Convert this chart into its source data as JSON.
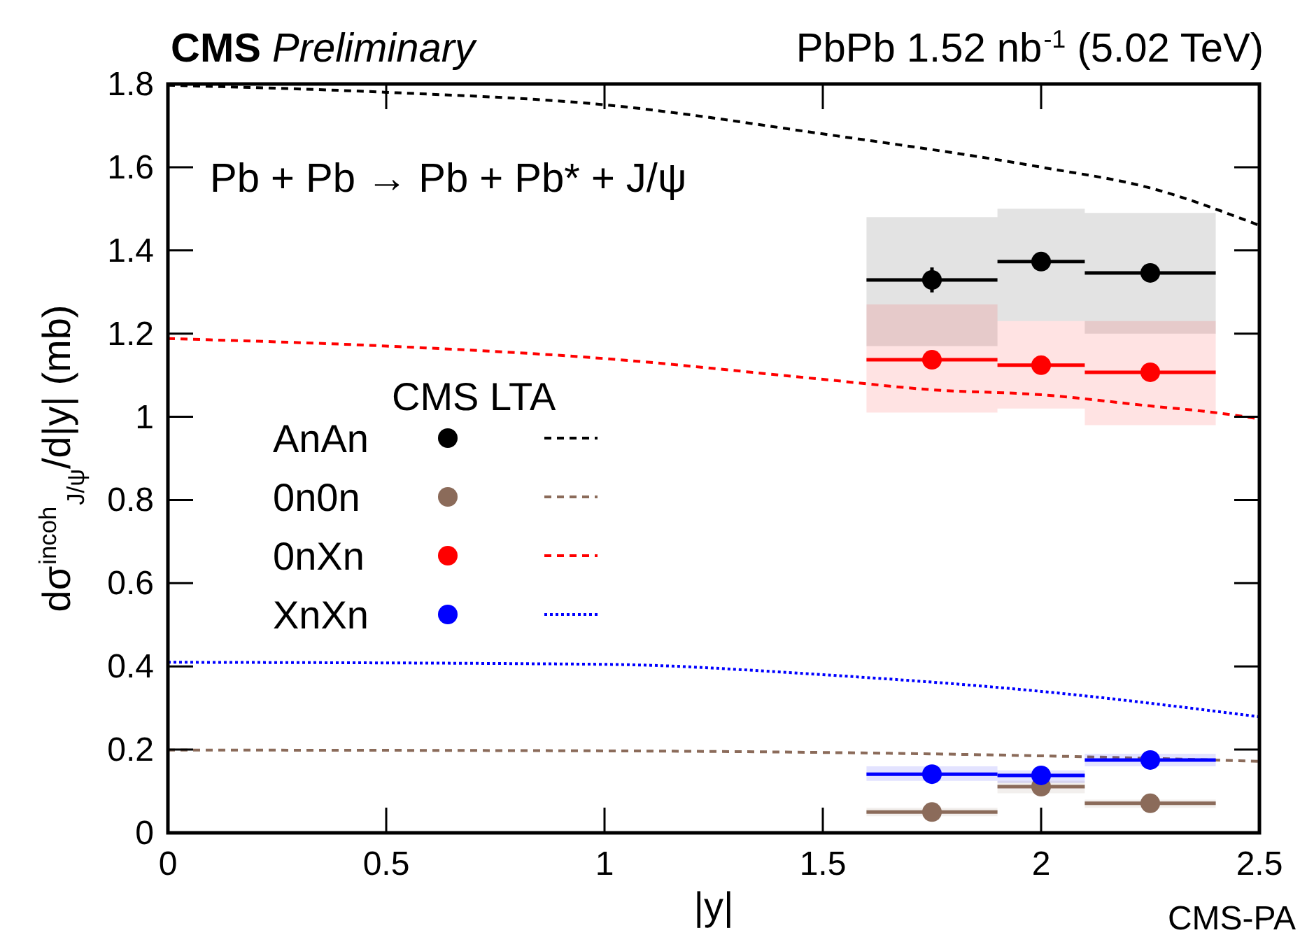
{
  "chart_data": {
    "type": "scatter",
    "title": "CMS Preliminary",
    "subtitle": "PbPb 1.52 nb$^{-1}$ (5.02 TeV)",
    "xlabel": "|y|",
    "ylabel": "dσ$^{incoh}$$_{J/ψ}$/d|y| (mb)",
    "legend_title": "CMS LTA",
    "annotations": [
      "Pb + Pb → Pb + Pb* + J/ψ",
      "CMS-PA"
    ],
    "xlim": [
      0,
      2.5
    ],
    "xticks": [
      0,
      0.5,
      1,
      1.5,
      2,
      2.5
    ],
    "ylim": [
      0,
      1.8
    ],
    "yticks": [
      0,
      0.2,
      0.4,
      0.6,
      0.8,
      1,
      1.2,
      1.4,
      1.6,
      1.8
    ],
    "grid": false,
    "legend": "left",
    "marker": "circle",
    "series": [
      {
        "color": "#000000",
        "x": [
          1.6,
          1.9,
          1.9,
          2.1,
          2.1,
          2.4
        ],
        "values": [
          null,
          null,
          null,
          null,
          null,
          null
        ],
        "lower": [
          1.17,
          1.17,
          1.23,
          1.23,
          1.2,
          1.2
        ],
        "upper": [
          1.48,
          1.48,
          1.5,
          1.5,
          1.49,
          1.49
        ]
      },
      {
        "color": "#8b6b5a",
        "x": [
          1.6,
          1.9,
          1.9,
          2.1,
          2.1,
          2.4
        ],
        "values": [
          null,
          null,
          null,
          null,
          null,
          null
        ],
        "lower": [
          0.04,
          0.04,
          0.095,
          0.095,
          0.06,
          0.06
        ],
        "upper": [
          0.06,
          0.06,
          0.125,
          0.125,
          0.08,
          0.08
        ]
      },
      {
        "color": "#ff0000",
        "x": [
          1.6,
          1.9,
          1.9,
          2.1,
          2.1,
          2.4
        ],
        "values": [
          null,
          null,
          null,
          null,
          null,
          null
        ],
        "lower": [
          1.01,
          1.01,
          1.02,
          1.02,
          0.98,
          0.98
        ],
        "upper": [
          1.27,
          1.27,
          1.23,
          1.23,
          1.23,
          1.23
        ]
      },
      {
        "color": "#0000ff",
        "x": [
          1.6,
          1.9,
          1.9,
          2.1,
          2.1,
          2.4
        ],
        "values": [
          null,
          null,
          null,
          null,
          null,
          null
        ],
        "lower": [
          0.125,
          0.125,
          0.12,
          0.12,
          0.16,
          0.16
        ],
        "upper": [
          0.16,
          0.16,
          0.15,
          0.15,
          0.19,
          0.19
        ]
      },
      {
        "name": "AnAn",
        "color": "#000000",
        "x": [
          1.75,
          2,
          2.25
        ],
        "values": [
          1.329,
          1.373,
          1.346
        ],
        "errors": [
          0.03,
          null,
          null
        ],
        "xerrors": [
          0.15,
          0.1,
          0.15
        ]
      },
      {
        "name": "0n0n",
        "color": "#8b6b5a",
        "x": [
          1.75,
          2,
          2.25
        ],
        "values": [
          0.05,
          0.111,
          0.071
        ],
        "xerrors": [
          0.15,
          0.1,
          0.15
        ]
      },
      {
        "name": "0nXn",
        "color": "#ff0000",
        "x": [
          1.75,
          2,
          2.25
        ],
        "values": [
          1.137,
          1.124,
          1.107
        ],
        "errors": [
          0.02,
          null,
          null
        ],
        "xerrors": [
          0.15,
          0.1,
          0.15
        ]
      },
      {
        "name": "XnXn",
        "color": "#0000ff",
        "x": [
          1.75,
          2,
          2.25
        ],
        "values": [
          0.141,
          0.138,
          0.175
        ],
        "xerrors": [
          0.15,
          0.1,
          0.15
        ]
      },
      {
        "type": "line",
        "color": "#000000",
        "line_style": "dashed",
        "marker": "none",
        "x": [
          0,
          0.5,
          1,
          1.5,
          2,
          2.25,
          2.5
        ],
        "values": [
          1.797,
          1.78,
          1.75,
          1.68,
          1.6,
          1.55,
          1.46
        ]
      },
      {
        "type": "line",
        "color": "#8b6b5a",
        "line_style": "dashed",
        "marker": "none",
        "x": [
          0,
          1,
          2,
          2.5
        ],
        "values": [
          0.199,
          0.197,
          0.185,
          0.172
        ]
      },
      {
        "type": "line",
        "color": "#ff0000",
        "line_style": "dashed",
        "marker": "none",
        "x": [
          0,
          0.5,
          1,
          1.5,
          1.75,
          2,
          2.25,
          2.4,
          2.5
        ],
        "values": [
          1.188,
          1.17,
          1.14,
          1.09,
          1.065,
          1.053,
          1.026,
          1.01,
          0.995
        ]
      },
      {
        "type": "line",
        "color": "#0000ff",
        "line_style": "dotted",
        "marker": "none",
        "x": [
          0,
          1,
          1.5,
          2,
          2.5
        ],
        "values": [
          0.41,
          0.405,
          0.38,
          0.34,
          0.279
        ]
      }
    ]
  }
}
